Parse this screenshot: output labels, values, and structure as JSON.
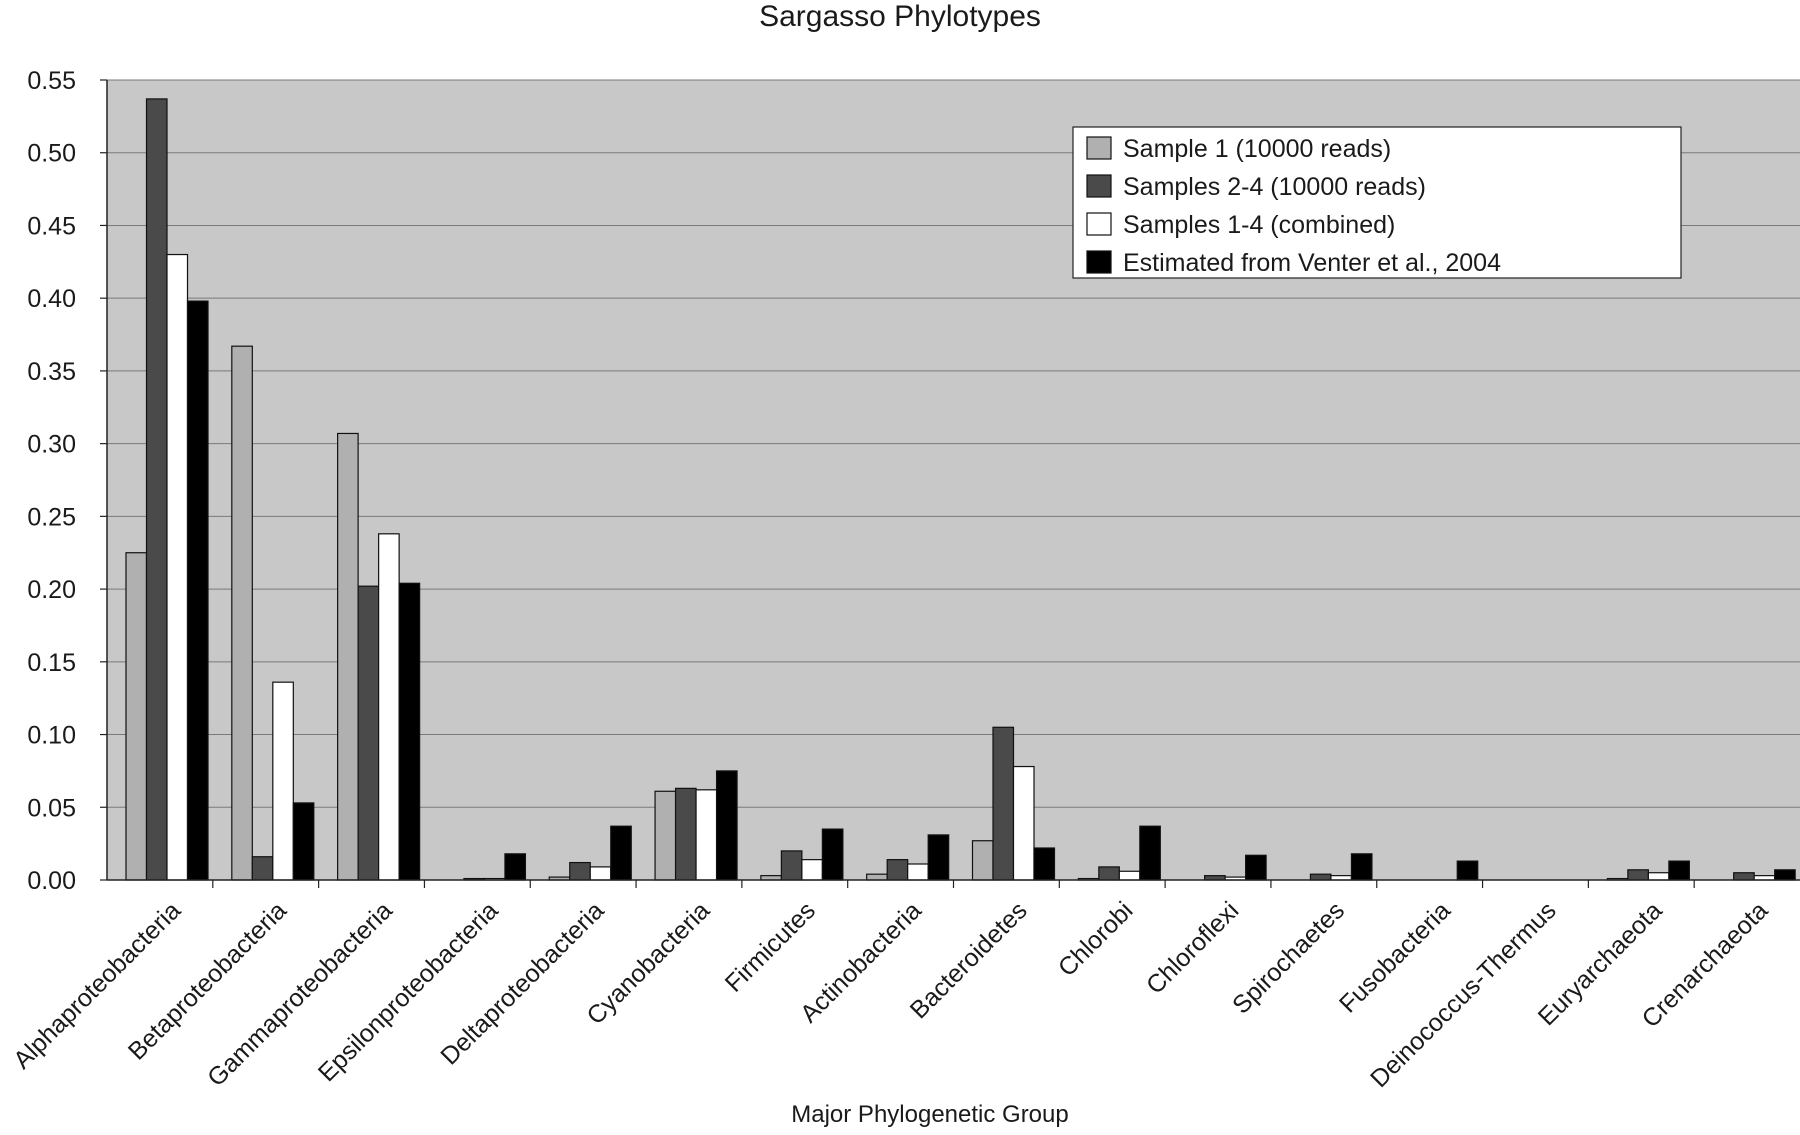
{
  "chart_data": {
    "type": "bar",
    "title": "Sargasso Phylotypes",
    "xlabel": "Major Phylogenetic Group",
    "ylabel": "",
    "ylim": [
      0,
      0.55
    ],
    "yticks": [
      "0.00",
      "0.05",
      "0.10",
      "0.15",
      "0.20",
      "0.25",
      "0.30",
      "0.35",
      "0.40",
      "0.45",
      "0.50",
      "0.55"
    ],
    "grid": true,
    "legend_position": "top-right",
    "categories": [
      "Alphaproteobacteria",
      "Betaproteobacteria",
      "Gammaproteobacteria",
      "Epsilonproteobacteria",
      "Deltaproteobacteria",
      "Cyanobacteria",
      "Firmicutes",
      "Actinobacteria",
      "Bacteroidetes",
      "Chlorobi",
      "Chloroflexi",
      "Spirochaetes",
      "Fusobacteria",
      "Deinococcus-Thermus",
      "Euryarchaeota",
      "Crenarchaeota"
    ],
    "series": [
      {
        "name": "Sample 1 (10000 reads)",
        "color": "#b0b0b0",
        "values": [
          0.225,
          0.367,
          0.307,
          0.0,
          0.002,
          0.061,
          0.003,
          0.004,
          0.027,
          0.001,
          0.0,
          0.0,
          0.0,
          0.0,
          0.001,
          0.0
        ]
      },
      {
        "name": "Samples 2-4 (10000 reads)",
        "color": "#4a4a4a",
        "values": [
          0.537,
          0.016,
          0.202,
          0.001,
          0.012,
          0.063,
          0.02,
          0.014,
          0.105,
          0.009,
          0.003,
          0.004,
          0.0,
          0.0,
          0.007,
          0.005
        ]
      },
      {
        "name": "Samples 1-4 (combined)",
        "color": "#ffffff",
        "values": [
          0.43,
          0.136,
          0.238,
          0.001,
          0.009,
          0.062,
          0.014,
          0.011,
          0.078,
          0.006,
          0.002,
          0.003,
          0.0,
          0.0,
          0.005,
          0.003
        ]
      },
      {
        "name": "Estimated from Venter et al., 2004",
        "color": "#000000",
        "values": [
          0.398,
          0.053,
          0.204,
          0.018,
          0.037,
          0.075,
          0.035,
          0.031,
          0.022,
          0.037,
          0.017,
          0.018,
          0.013,
          0.0,
          0.013,
          0.007
        ]
      }
    ],
    "plot_background": "#c8c8c8",
    "grid_color": "#7a7a7a"
  }
}
